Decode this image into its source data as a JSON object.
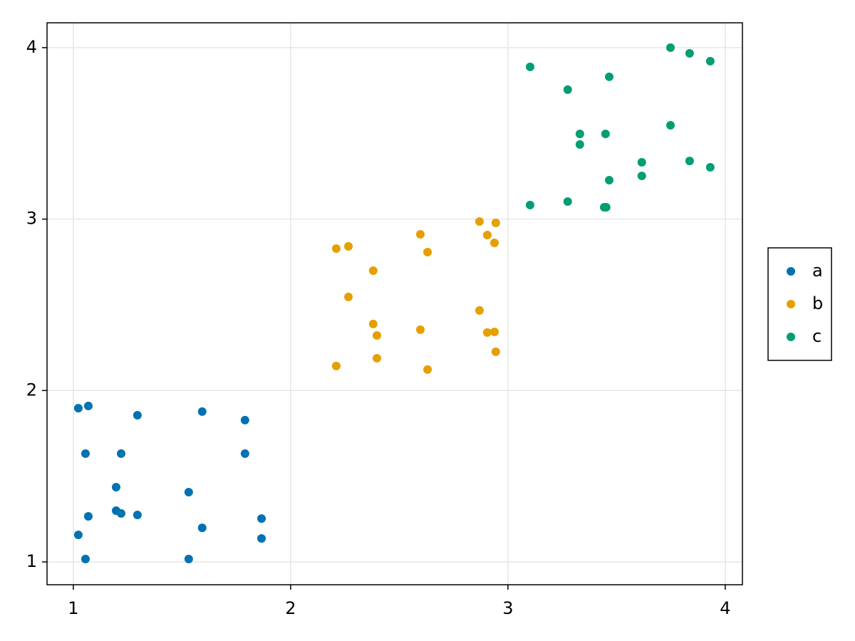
{
  "chart_data": {
    "type": "scatter",
    "xlim": [
      0.879,
      4.079
    ],
    "ylim": [
      0.867,
      4.145
    ],
    "xticks": [
      1,
      2,
      3,
      4
    ],
    "yticks": [
      1,
      2,
      3,
      4
    ],
    "grid": true,
    "legend": "right",
    "series": [
      {
        "name": "a",
        "color": "#0072b2",
        "x": [
          1.023,
          1.069,
          1.056,
          1.22,
          1.295,
          1.593,
          1.79,
          1.79,
          1.197,
          1.531,
          1.197,
          1.22,
          1.295,
          1.069,
          1.866,
          1.593,
          1.023,
          1.866,
          1.056,
          1.531
        ],
        "values": [
          1.897,
          1.91,
          1.632,
          1.632,
          1.856,
          1.877,
          1.827,
          1.632,
          1.436,
          1.407,
          1.299,
          1.283,
          1.274,
          1.266,
          1.253,
          1.199,
          1.158,
          1.137,
          1.017,
          1.017
        ]
      },
      {
        "name": "b",
        "color": "#e69f00",
        "x": [
          2.21,
          2.266,
          2.597,
          2.63,
          2.869,
          2.905,
          2.944,
          2.938,
          2.38,
          2.266,
          2.869,
          2.38,
          2.397,
          2.597,
          2.905,
          2.938,
          2.944,
          2.397,
          2.21,
          2.63
        ],
        "values": [
          2.828,
          2.841,
          2.911,
          2.807,
          2.986,
          2.907,
          2.978,
          2.861,
          2.699,
          2.546,
          2.467,
          2.388,
          2.321,
          2.355,
          2.338,
          2.342,
          2.226,
          2.188,
          2.143,
          2.122
        ]
      },
      {
        "name": "c",
        "color": "#009e73",
        "x": [
          3.102,
          3.275,
          3.466,
          3.748,
          3.836,
          3.931,
          3.331,
          3.449,
          3.331,
          3.748,
          3.616,
          3.836,
          3.931,
          3.466,
          3.616,
          3.102,
          3.275,
          3.443,
          3.452
        ],
        "values": [
          3.888,
          3.755,
          3.83,
          4.0,
          3.967,
          3.921,
          3.497,
          3.497,
          3.435,
          3.547,
          3.331,
          3.339,
          3.302,
          3.227,
          3.252,
          3.082,
          3.102,
          3.069,
          3.069
        ]
      }
    ]
  }
}
